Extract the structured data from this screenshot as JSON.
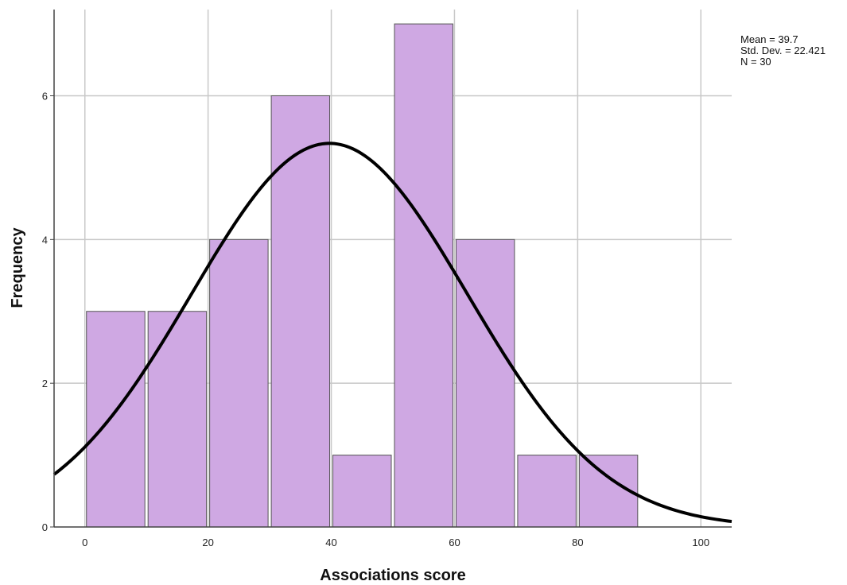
{
  "chart_data": {
    "type": "histogram",
    "xlabel": "Associations score",
    "ylabel": "Frequency",
    "xlim": [
      -5,
      105
    ],
    "ylim": [
      0,
      7.2
    ],
    "x_ticks": [
      0,
      20,
      40,
      60,
      80,
      100
    ],
    "y_ticks": [
      0,
      2,
      4,
      6
    ],
    "grid": true,
    "bar_color": "#cfa8e3",
    "bar_edge_color": "#555555",
    "curve_color": "#000000",
    "bins": [
      {
        "x0": 0,
        "x1": 10,
        "count": 3
      },
      {
        "x0": 10,
        "x1": 20,
        "count": 3
      },
      {
        "x0": 20,
        "x1": 30,
        "count": 4
      },
      {
        "x0": 30,
        "x1": 40,
        "count": 6
      },
      {
        "x0": 40,
        "x1": 50,
        "count": 1
      },
      {
        "x0": 50,
        "x1": 60,
        "count": 7
      },
      {
        "x0": 60,
        "x1": 70,
        "count": 4
      },
      {
        "x0": 70,
        "x1": 80,
        "count": 1
      },
      {
        "x0": 80,
        "x1": 90,
        "count": 1
      }
    ],
    "normal_curve": {
      "mean": 39.7,
      "sd": 22.421,
      "n": 30,
      "bin_width": 10
    },
    "stats_text": {
      "mean": "Mean = 39.7",
      "sd": "Std. Dev. = 22.421",
      "n": "N = 30"
    }
  }
}
